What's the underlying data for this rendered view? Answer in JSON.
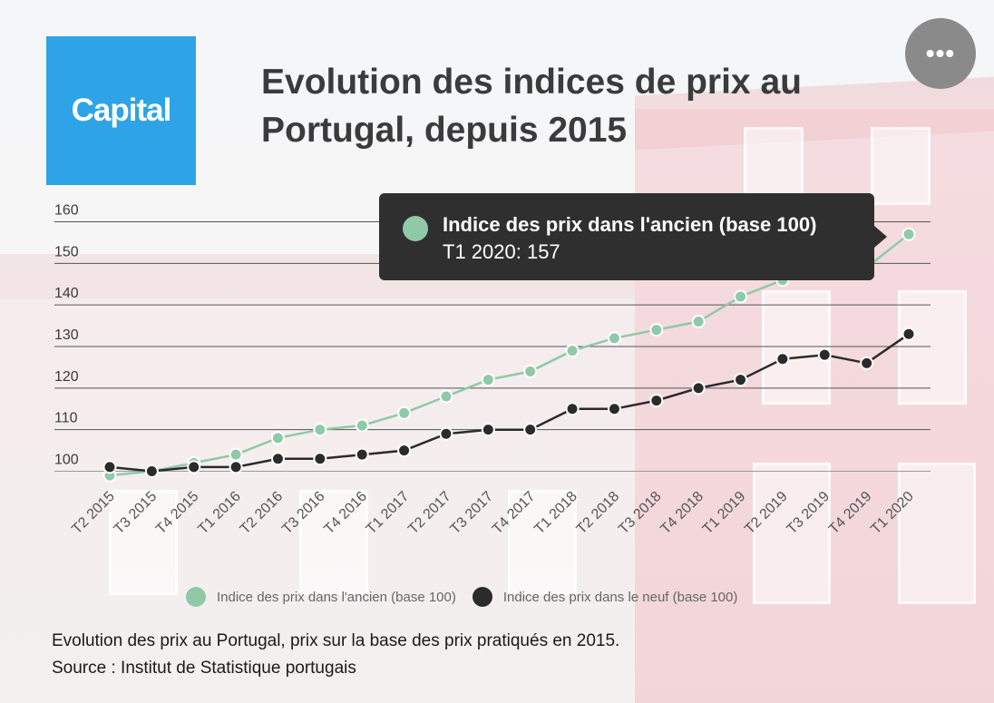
{
  "header": {
    "logo_text": "Capital",
    "title": "Evolution des indices de prix au Portugal, depuis 2015",
    "menu_icon": "more-horizontal-icon",
    "menu_glyph": "•••"
  },
  "tooltip": {
    "series": "Indice des prix dans l'ancien (base 100)",
    "text": "T1 2020: 157",
    "color": "#8fc9a8"
  },
  "caption": {
    "line1": "Evolution des prix au Portugal, prix sur la base des prix pratiqués en 2015.",
    "line2": "Source : Institut de Statistique portugais"
  },
  "chart_data": {
    "type": "line",
    "categories": [
      "T2 2015",
      "T3 2015",
      "T4 2015",
      "T1 2016",
      "T2 2016",
      "T3 2016",
      "T4 2016",
      "T1 2017",
      "T2 2017",
      "T3 2017",
      "T4 2017",
      "T1 2018",
      "T2 2018",
      "T3 2018",
      "T4 2018",
      "T1 2019",
      "T2 2019",
      "T3 2019",
      "T4 2019",
      "T1 2020"
    ],
    "series": [
      {
        "name": "Indice des prix dans l'ancien (base 100)",
        "color": "#8fc9a8",
        "values": [
          99,
          100,
          102,
          104,
          108,
          110,
          111,
          114,
          118,
          122,
          124,
          129,
          132,
          134,
          136,
          142,
          146,
          149,
          149,
          157
        ]
      },
      {
        "name": "Indice des prix dans le neuf (base 100)",
        "color": "#2b2b2b",
        "values": [
          101,
          100,
          101,
          101,
          103,
          103,
          104,
          105,
          109,
          110,
          110,
          115,
          115,
          117,
          120,
          122,
          127,
          128,
          126,
          133
        ]
      }
    ],
    "yticks": [
      100,
      110,
      120,
      130,
      140,
      150,
      160
    ],
    "ylim": [
      97,
      160
    ],
    "grid": true,
    "legend": "bottom"
  }
}
